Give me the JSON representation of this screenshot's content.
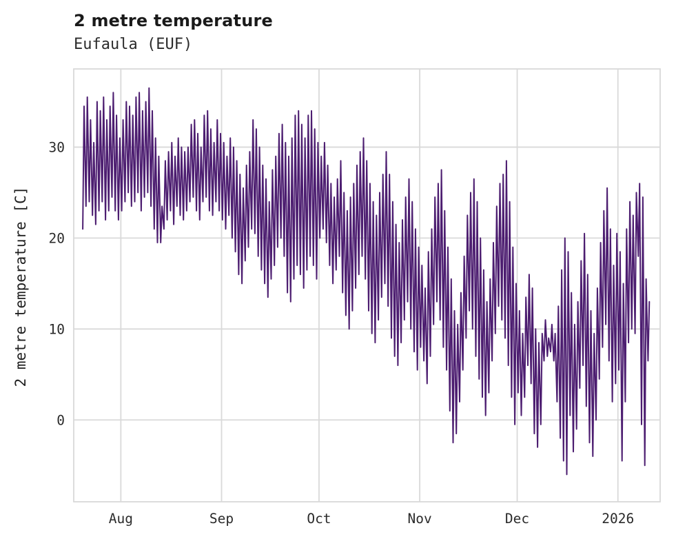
{
  "chart_data": {
    "type": "line",
    "title": "2 metre temperature",
    "subtitle": "Eufaula (EUF)",
    "ylabel": "2 metre temperature [C]",
    "xlabel": "",
    "legend": "none",
    "grid": "on",
    "line_color": "#4c1d70",
    "grid_color": "#d9d9d9",
    "background_color": "#ffffff",
    "xlim": [
      -2.5,
      178
    ],
    "ylim": [
      -9,
      38.6
    ],
    "yticks": [
      0,
      10,
      20,
      30
    ],
    "xticks": [
      {
        "day": 12,
        "label": "Aug"
      },
      {
        "day": 43,
        "label": "Sep"
      },
      {
        "day": 73,
        "label": "Oct"
      },
      {
        "day": 104,
        "label": "Nov"
      },
      {
        "day": 134,
        "label": "Dec"
      },
      {
        "day": 165,
        "label": "2026"
      }
    ],
    "x_note": "x in days; day 0 is about 12 days before the Aug gridline; values are the daily min/max envelope of the dense hourly temperature trace",
    "series": [
      {
        "name": "2 metre temperature",
        "daily_min": [
          21,
          23.5,
          24,
          22.5,
          21.5,
          23,
          24,
          22,
          23,
          24.5,
          23,
          22,
          23,
          24,
          25,
          23.5,
          24,
          25,
          23,
          24.5,
          25,
          23.5,
          21,
          19.5,
          19.5,
          21,
          22,
          23,
          21.5,
          23.5,
          22.5,
          22,
          23,
          24,
          24.5,
          23,
          22,
          24,
          24.5,
          23,
          22.5,
          24,
          23,
          22,
          21,
          22.5,
          20,
          18.5,
          16,
          15,
          17.5,
          19,
          21,
          20.5,
          18,
          16.5,
          15,
          13.5,
          15.5,
          17,
          19,
          20,
          18,
          14,
          13,
          15.5,
          17,
          16,
          14.5,
          16.5,
          18,
          17,
          15.5,
          20,
          21,
          19.5,
          17,
          15,
          16.5,
          18,
          14,
          11.5,
          10,
          12,
          14.5,
          16,
          18,
          15.5,
          12,
          9.5,
          8.5,
          11,
          13.5,
          15,
          12.5,
          9,
          7,
          6,
          8.5,
          11,
          13,
          10,
          7.5,
          5.5,
          8,
          6.5,
          4,
          7,
          10.5,
          13,
          11,
          8,
          5.5,
          1,
          -2.5,
          -1.5,
          2,
          5.5,
          9,
          12,
          10,
          7,
          4.5,
          2.5,
          0.5,
          3,
          6.5,
          9.5,
          12.5,
          11,
          9,
          6,
          2.5,
          -0.5,
          3,
          0.5,
          2.5,
          6,
          4,
          -1.5,
          -3,
          -0.5,
          6.5,
          7,
          7.5,
          6.5,
          2,
          -2,
          -4.5,
          -6,
          0.5,
          -3.5,
          -1,
          3.5,
          6,
          1.5,
          -2.5,
          -4,
          0,
          4.5,
          8,
          10.5,
          6.5,
          2,
          4,
          5.5,
          -4.5,
          2,
          8.5,
          10,
          9.5,
          18,
          -0.5,
          -5,
          6.5
        ],
        "daily_max": [
          34.5,
          35.5,
          33,
          30.5,
          35,
          34,
          35.5,
          33,
          34.5,
          36,
          33.5,
          31,
          33,
          35,
          34.5,
          33.5,
          35.5,
          36,
          34,
          35,
          36.5,
          34,
          31,
          29,
          23.5,
          28.5,
          29.5,
          30.5,
          29,
          31,
          30,
          29.5,
          30,
          32.5,
          33,
          31.5,
          30,
          33.5,
          34,
          32,
          30.5,
          33,
          31.5,
          30.5,
          29,
          31,
          30,
          28.5,
          27,
          25.5,
          28,
          29.5,
          33,
          32,
          30,
          28,
          26.5,
          24,
          27.5,
          29,
          31.5,
          32.5,
          30.5,
          29,
          31,
          33.5,
          34,
          32.5,
          31,
          33.5,
          34,
          32,
          30.5,
          29,
          30.5,
          28,
          26,
          24.5,
          26.5,
          28.5,
          25,
          23,
          24.5,
          26,
          28,
          29.5,
          31,
          28.5,
          26,
          24,
          22.5,
          25,
          27,
          29.5,
          27,
          24,
          21.5,
          19.5,
          22,
          24.5,
          26.5,
          24,
          21,
          19,
          17,
          14.5,
          18.5,
          21,
          24.5,
          26,
          27.5,
          23,
          19,
          15.5,
          12,
          10.5,
          14,
          18,
          22.5,
          25,
          26.5,
          24,
          20,
          16.5,
          13,
          15.5,
          19.5,
          23.5,
          26,
          27,
          28.5,
          24,
          19,
          15,
          12,
          9.5,
          13.5,
          16,
          14.5,
          10,
          8.5,
          9.5,
          11,
          9,
          10.5,
          9.5,
          12.5,
          16.5,
          20,
          18.5,
          14,
          10.5,
          13,
          17.5,
          20.5,
          16,
          12,
          9.5,
          14.5,
          19.5,
          23,
          25.5,
          21,
          17,
          20.5,
          18.5,
          15,
          21,
          24,
          22.5,
          25,
          26,
          24.5,
          15.5,
          13
        ]
      }
    ]
  }
}
